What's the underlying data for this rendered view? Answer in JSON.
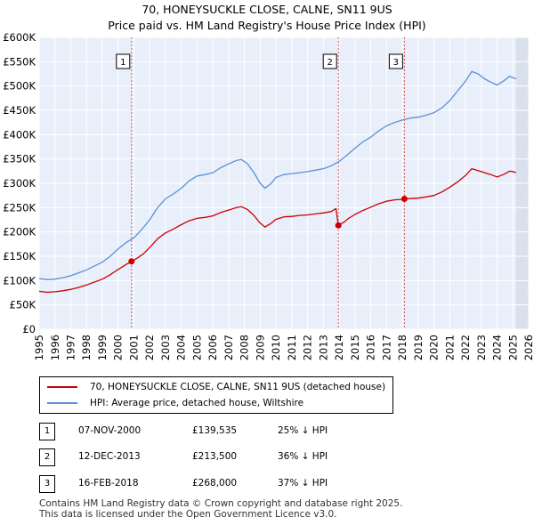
{
  "title": {
    "line1": "70, HONEYSUCKLE CLOSE, CALNE, SN11 9US",
    "line2": "Price paid vs. HM Land Registry's House Price Index (HPI)"
  },
  "legend": {
    "property_label": "70, HONEYSUCKLE CLOSE, CALNE, SN11 9US (detached house)",
    "hpi_label": "HPI: Average price, detached house, Wiltshire"
  },
  "sales": [
    {
      "num": "1",
      "date": "07-NOV-2000",
      "price": "£139,535",
      "hpi": "25% ↓ HPI"
    },
    {
      "num": "2",
      "date": "12-DEC-2013",
      "price": "£213,500",
      "hpi": "36% ↓ HPI"
    },
    {
      "num": "3",
      "date": "16-FEB-2018",
      "price": "£268,000",
      "hpi": "37% ↓ HPI"
    }
  ],
  "footer": {
    "line1": "Contains HM Land Registry data © Crown copyright and database right 2025.",
    "line2": "This data is licensed under the Open Government Licence v3.0."
  },
  "colors": {
    "property": "#cc0000",
    "hpi": "#5b8fd6",
    "background": "#e8effa",
    "grid": "#ffffff",
    "marker_line": "#dd4444"
  },
  "chart_data": {
    "type": "line",
    "xlim": [
      1995,
      2026
    ],
    "ylim": [
      0,
      600000
    ],
    "x_ticks": [
      "1995",
      "1996",
      "1997",
      "1998",
      "1999",
      "2000",
      "2001",
      "2002",
      "2003",
      "2004",
      "2005",
      "2006",
      "2007",
      "2008",
      "2009",
      "2010",
      "2011",
      "2012",
      "2013",
      "2014",
      "2015",
      "2016",
      "2017",
      "2018",
      "2019",
      "2020",
      "2021",
      "2022",
      "2023",
      "2024",
      "2025",
      "2026"
    ],
    "y_ticks": [
      {
        "value": 0,
        "label": "£0"
      },
      {
        "value": 50000,
        "label": "£50K"
      },
      {
        "value": 100000,
        "label": "£100K"
      },
      {
        "value": 150000,
        "label": "£150K"
      },
      {
        "value": 200000,
        "label": "£200K"
      },
      {
        "value": 250000,
        "label": "£250K"
      },
      {
        "value": 300000,
        "label": "£300K"
      },
      {
        "value": 350000,
        "label": "£350K"
      },
      {
        "value": 400000,
        "label": "£400K"
      },
      {
        "value": 450000,
        "label": "£450K"
      },
      {
        "value": 500000,
        "label": "£500K"
      },
      {
        "value": 550000,
        "label": "£550K"
      },
      {
        "value": 600000,
        "label": "£600K"
      }
    ],
    "series": [
      {
        "name": "HPI: Average price, detached house, Wiltshire",
        "x": [
          1995.0,
          1995.5,
          1996.0,
          1996.5,
          1997.0,
          1997.5,
          1998.0,
          1998.5,
          1999.0,
          1999.5,
          2000.0,
          2000.5,
          2001.0,
          2001.5,
          2002.0,
          2002.5,
          2003.0,
          2003.5,
          2004.0,
          2004.5,
          2005.0,
          2005.5,
          2006.0,
          2006.5,
          2007.0,
          2007.5,
          2007.8,
          2008.2,
          2008.6,
          2009.0,
          2009.3,
          2009.7,
          2010.0,
          2010.5,
          2011.0,
          2011.5,
          2012.0,
          2012.5,
          2013.0,
          2013.5,
          2014.0,
          2014.5,
          2015.0,
          2015.5,
          2016.0,
          2016.5,
          2017.0,
          2017.5,
          2018.0,
          2018.5,
          2019.0,
          2019.5,
          2020.0,
          2020.5,
          2021.0,
          2021.5,
          2022.0,
          2022.4,
          2022.8,
          2023.2,
          2023.6,
          2024.0,
          2024.4,
          2024.8,
          2025.0,
          2025.2
        ],
        "values": [
          104000,
          102000,
          103000,
          106000,
          110000,
          116000,
          122000,
          130000,
          138000,
          150000,
          165000,
          178000,
          188000,
          205000,
          225000,
          250000,
          268000,
          278000,
          290000,
          305000,
          315000,
          318000,
          322000,
          332000,
          340000,
          347000,
          349000,
          340000,
          322000,
          300000,
          290000,
          300000,
          312000,
          318000,
          320000,
          322000,
          324000,
          327000,
          330000,
          336000,
          345000,
          358000,
          372000,
          385000,
          395000,
          408000,
          418000,
          425000,
          430000,
          434000,
          436000,
          440000,
          445000,
          455000,
          470000,
          490000,
          510000,
          530000,
          525000,
          515000,
          508000,
          502000,
          510000,
          520000,
          517000,
          515000
        ]
      },
      {
        "name": "70, HONEYSUCKLE CLOSE, CALNE, SN11 9US (detached house)",
        "x": [
          1995.0,
          1995.5,
          1996.0,
          1996.5,
          1997.0,
          1997.5,
          1998.0,
          1998.5,
          1999.0,
          1999.5,
          2000.0,
          2000.5,
          2000.85,
          2001.2,
          2001.6,
          2002.0,
          2002.5,
          2003.0,
          2003.5,
          2004.0,
          2004.5,
          2005.0,
          2005.5,
          2006.0,
          2006.5,
          2007.0,
          2007.5,
          2007.8,
          2008.2,
          2008.6,
          2009.0,
          2009.3,
          2009.7,
          2010.0,
          2010.5,
          2011.0,
          2011.5,
          2012.0,
          2012.5,
          2013.0,
          2013.5,
          2013.8,
          2013.95,
          2014.3,
          2014.6,
          2015.0,
          2015.5,
          2016.0,
          2016.5,
          2017.0,
          2017.5,
          2018.0,
          2018.13,
          2018.5,
          2019.0,
          2019.5,
          2020.0,
          2020.5,
          2021.0,
          2021.5,
          2022.0,
          2022.4,
          2022.8,
          2023.2,
          2023.6,
          2024.0,
          2024.4,
          2024.8,
          2025.0,
          2025.2
        ],
        "values": [
          78000,
          76000,
          77000,
          79000,
          82000,
          86000,
          91000,
          97000,
          103000,
          112000,
          123000,
          133000,
          139535,
          146000,
          155000,
          168000,
          186000,
          198000,
          206000,
          215000,
          223000,
          228000,
          230000,
          233000,
          240000,
          245000,
          250000,
          252000,
          246000,
          234000,
          218000,
          210000,
          218000,
          226000,
          231000,
          232000,
          234000,
          235000,
          237000,
          239000,
          242000,
          248000,
          213500,
          220000,
          228000,
          236000,
          244000,
          251000,
          258000,
          263000,
          266000,
          267000,
          268000,
          268500,
          269500,
          272000,
          275000,
          282000,
          292000,
          303000,
          316000,
          330000,
          326000,
          322000,
          318000,
          313000,
          318000,
          325000,
          324000,
          322000
        ]
      }
    ],
    "sales": [
      {
        "label": "1",
        "x": 2000.85,
        "value": 139535
      },
      {
        "label": "2",
        "x": 2013.95,
        "value": 213500
      },
      {
        "label": "3",
        "x": 2018.13,
        "value": 268000
      }
    ],
    "future_start": 2025.2
  }
}
